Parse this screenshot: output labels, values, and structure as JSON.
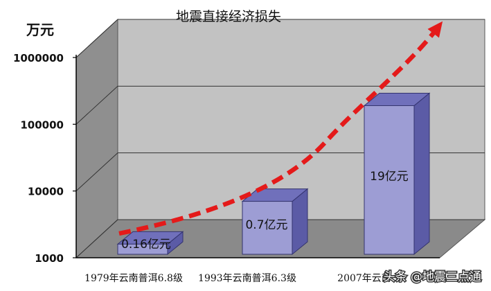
{
  "chart_data": {
    "type": "bar",
    "title": "地震直接经济损失",
    "ylabel": "万元",
    "xlabel": "",
    "yscale": "log",
    "ylim": [
      1000,
      1000000
    ],
    "yticks": [
      1000,
      10000,
      100000,
      1000000
    ],
    "ytick_labels": [
      "1000",
      "10000",
      "100000",
      "1000000"
    ],
    "categories": [
      "1979年云南普洱6.8级",
      "1993年云南普洱6.3级",
      "2007年云南普洱6.4级"
    ],
    "category_labels": [
      "1979年云南普洱6.8级",
      "1993年云南普洱6.3级",
      "2007年云南"
    ],
    "values": [
      1600,
      7000,
      190000
    ],
    "data_labels": [
      "0.16亿元",
      "0.7亿元",
      "19亿元"
    ],
    "trend_arrow": true,
    "grid": true,
    "style": "3d",
    "colors": {
      "bar_front": "#9d9dd4",
      "bar_top": "#7070bb",
      "bar_side": "#5b5ba6",
      "bar_edge": "#33336e",
      "wall_back": "#c2c2c2",
      "wall_side": "#8f8f8f",
      "floor": "#8a8a8a",
      "trend": "#e41a1a",
      "page": "#ffffff"
    }
  },
  "watermark": "头条 @地震三点通"
}
